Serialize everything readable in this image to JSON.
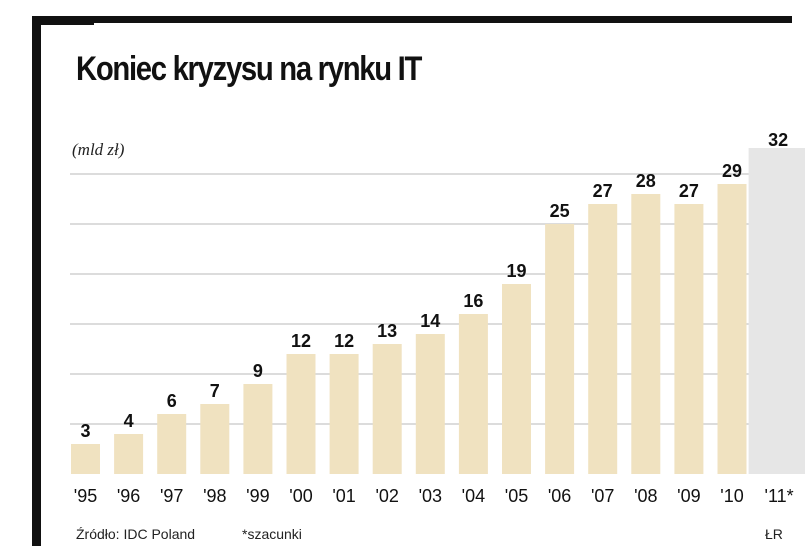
{
  "title": "Koniec kryzysu na rynku IT",
  "unit_label": "(mld zł)",
  "footer": {
    "source": "Źródło: IDC Poland",
    "note": "*szacunki",
    "author": "ŁR"
  },
  "colors": {
    "bar": "#f0e2c0",
    "bar_estimate": "#e6e6e6",
    "grid": "#b9b9b9",
    "text": "#111111",
    "frame": "#111111"
  },
  "chart_data": {
    "type": "bar",
    "title": "Koniec kryzysu na rynku IT",
    "ylabel": "(mld zł)",
    "xlabel": "",
    "categories": [
      "'95",
      "'96",
      "'97",
      "'98",
      "'99",
      "'00",
      "'01",
      "'02",
      "'03",
      "'04",
      "'05",
      "'06",
      "'07",
      "'08",
      "'09",
      "'10",
      "'11*"
    ],
    "values": [
      3,
      4,
      6,
      7,
      9,
      12,
      12,
      13,
      14,
      16,
      19,
      25,
      27,
      28,
      27,
      29,
      32
    ],
    "estimated": [
      false,
      false,
      false,
      false,
      false,
      false,
      false,
      false,
      false,
      false,
      false,
      false,
      false,
      false,
      false,
      false,
      true
    ],
    "ylim": [
      0,
      32
    ],
    "grid": true,
    "data_labels": [
      "3",
      "4",
      "6",
      "7",
      "9",
      "12",
      "12",
      "13",
      "14",
      "16",
      "19",
      "25",
      "27",
      "28",
      "27",
      "29",
      "32"
    ]
  }
}
